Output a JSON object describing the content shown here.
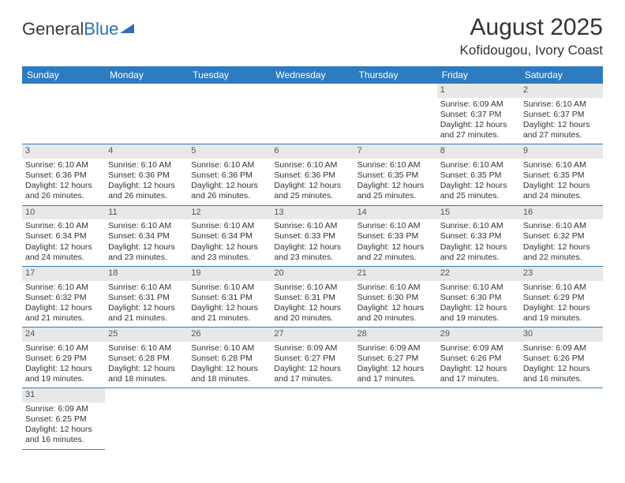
{
  "brand": {
    "part1": "General",
    "part2": "Blue"
  },
  "title": "August 2025",
  "location": "Kofidougou, Ivory Coast",
  "colors": {
    "header_bg": "#2d7bc0",
    "header_text": "#ffffff",
    "daynum_bg": "#e8e8e8",
    "border": "#2d7bc0",
    "brand_blue": "#2d6fb8",
    "text": "#333333"
  },
  "weekdays": [
    "Sunday",
    "Monday",
    "Tuesday",
    "Wednesday",
    "Thursday",
    "Friday",
    "Saturday"
  ],
  "weeks": [
    [
      null,
      null,
      null,
      null,
      null,
      {
        "d": "1",
        "sr": "Sunrise: 6:09 AM",
        "ss": "Sunset: 6:37 PM",
        "dl1": "Daylight: 12 hours",
        "dl2": "and 27 minutes."
      },
      {
        "d": "2",
        "sr": "Sunrise: 6:10 AM",
        "ss": "Sunset: 6:37 PM",
        "dl1": "Daylight: 12 hours",
        "dl2": "and 27 minutes."
      }
    ],
    [
      {
        "d": "3",
        "sr": "Sunrise: 6:10 AM",
        "ss": "Sunset: 6:36 PM",
        "dl1": "Daylight: 12 hours",
        "dl2": "and 26 minutes."
      },
      {
        "d": "4",
        "sr": "Sunrise: 6:10 AM",
        "ss": "Sunset: 6:36 PM",
        "dl1": "Daylight: 12 hours",
        "dl2": "and 26 minutes."
      },
      {
        "d": "5",
        "sr": "Sunrise: 6:10 AM",
        "ss": "Sunset: 6:36 PM",
        "dl1": "Daylight: 12 hours",
        "dl2": "and 26 minutes."
      },
      {
        "d": "6",
        "sr": "Sunrise: 6:10 AM",
        "ss": "Sunset: 6:36 PM",
        "dl1": "Daylight: 12 hours",
        "dl2": "and 25 minutes."
      },
      {
        "d": "7",
        "sr": "Sunrise: 6:10 AM",
        "ss": "Sunset: 6:35 PM",
        "dl1": "Daylight: 12 hours",
        "dl2": "and 25 minutes."
      },
      {
        "d": "8",
        "sr": "Sunrise: 6:10 AM",
        "ss": "Sunset: 6:35 PM",
        "dl1": "Daylight: 12 hours",
        "dl2": "and 25 minutes."
      },
      {
        "d": "9",
        "sr": "Sunrise: 6:10 AM",
        "ss": "Sunset: 6:35 PM",
        "dl1": "Daylight: 12 hours",
        "dl2": "and 24 minutes."
      }
    ],
    [
      {
        "d": "10",
        "sr": "Sunrise: 6:10 AM",
        "ss": "Sunset: 6:34 PM",
        "dl1": "Daylight: 12 hours",
        "dl2": "and 24 minutes."
      },
      {
        "d": "11",
        "sr": "Sunrise: 6:10 AM",
        "ss": "Sunset: 6:34 PM",
        "dl1": "Daylight: 12 hours",
        "dl2": "and 23 minutes."
      },
      {
        "d": "12",
        "sr": "Sunrise: 6:10 AM",
        "ss": "Sunset: 6:34 PM",
        "dl1": "Daylight: 12 hours",
        "dl2": "and 23 minutes."
      },
      {
        "d": "13",
        "sr": "Sunrise: 6:10 AM",
        "ss": "Sunset: 6:33 PM",
        "dl1": "Daylight: 12 hours",
        "dl2": "and 23 minutes."
      },
      {
        "d": "14",
        "sr": "Sunrise: 6:10 AM",
        "ss": "Sunset: 6:33 PM",
        "dl1": "Daylight: 12 hours",
        "dl2": "and 22 minutes."
      },
      {
        "d": "15",
        "sr": "Sunrise: 6:10 AM",
        "ss": "Sunset: 6:33 PM",
        "dl1": "Daylight: 12 hours",
        "dl2": "and 22 minutes."
      },
      {
        "d": "16",
        "sr": "Sunrise: 6:10 AM",
        "ss": "Sunset: 6:32 PM",
        "dl1": "Daylight: 12 hours",
        "dl2": "and 22 minutes."
      }
    ],
    [
      {
        "d": "17",
        "sr": "Sunrise: 6:10 AM",
        "ss": "Sunset: 6:32 PM",
        "dl1": "Daylight: 12 hours",
        "dl2": "and 21 minutes."
      },
      {
        "d": "18",
        "sr": "Sunrise: 6:10 AM",
        "ss": "Sunset: 6:31 PM",
        "dl1": "Daylight: 12 hours",
        "dl2": "and 21 minutes."
      },
      {
        "d": "19",
        "sr": "Sunrise: 6:10 AM",
        "ss": "Sunset: 6:31 PM",
        "dl1": "Daylight: 12 hours",
        "dl2": "and 21 minutes."
      },
      {
        "d": "20",
        "sr": "Sunrise: 6:10 AM",
        "ss": "Sunset: 6:31 PM",
        "dl1": "Daylight: 12 hours",
        "dl2": "and 20 minutes."
      },
      {
        "d": "21",
        "sr": "Sunrise: 6:10 AM",
        "ss": "Sunset: 6:30 PM",
        "dl1": "Daylight: 12 hours",
        "dl2": "and 20 minutes."
      },
      {
        "d": "22",
        "sr": "Sunrise: 6:10 AM",
        "ss": "Sunset: 6:30 PM",
        "dl1": "Daylight: 12 hours",
        "dl2": "and 19 minutes."
      },
      {
        "d": "23",
        "sr": "Sunrise: 6:10 AM",
        "ss": "Sunset: 6:29 PM",
        "dl1": "Daylight: 12 hours",
        "dl2": "and 19 minutes."
      }
    ],
    [
      {
        "d": "24",
        "sr": "Sunrise: 6:10 AM",
        "ss": "Sunset: 6:29 PM",
        "dl1": "Daylight: 12 hours",
        "dl2": "and 19 minutes."
      },
      {
        "d": "25",
        "sr": "Sunrise: 6:10 AM",
        "ss": "Sunset: 6:28 PM",
        "dl1": "Daylight: 12 hours",
        "dl2": "and 18 minutes."
      },
      {
        "d": "26",
        "sr": "Sunrise: 6:10 AM",
        "ss": "Sunset: 6:28 PM",
        "dl1": "Daylight: 12 hours",
        "dl2": "and 18 minutes."
      },
      {
        "d": "27",
        "sr": "Sunrise: 6:09 AM",
        "ss": "Sunset: 6:27 PM",
        "dl1": "Daylight: 12 hours",
        "dl2": "and 17 minutes."
      },
      {
        "d": "28",
        "sr": "Sunrise: 6:09 AM",
        "ss": "Sunset: 6:27 PM",
        "dl1": "Daylight: 12 hours",
        "dl2": "and 17 minutes."
      },
      {
        "d": "29",
        "sr": "Sunrise: 6:09 AM",
        "ss": "Sunset: 6:26 PM",
        "dl1": "Daylight: 12 hours",
        "dl2": "and 17 minutes."
      },
      {
        "d": "30",
        "sr": "Sunrise: 6:09 AM",
        "ss": "Sunset: 6:26 PM",
        "dl1": "Daylight: 12 hours",
        "dl2": "and 16 minutes."
      }
    ],
    [
      {
        "d": "31",
        "sr": "Sunrise: 6:09 AM",
        "ss": "Sunset: 6:25 PM",
        "dl1": "Daylight: 12 hours",
        "dl2": "and 16 minutes."
      },
      null,
      null,
      null,
      null,
      null,
      null
    ]
  ]
}
